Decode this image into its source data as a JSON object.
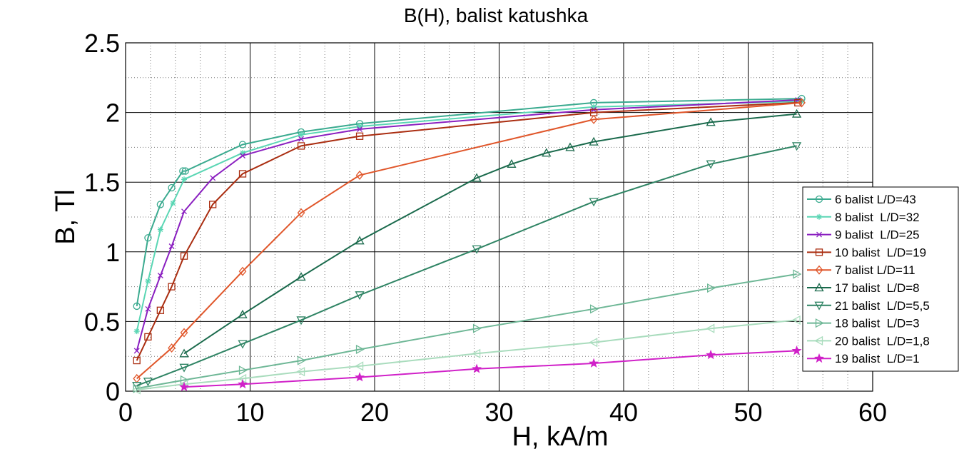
{
  "chart_data": {
    "type": "line",
    "title": "B(H), balist katushka",
    "xlabel": "H, kA/m",
    "ylabel": "B, Tl",
    "xlim": [
      0,
      60
    ],
    "ylim": [
      0,
      2.5
    ],
    "xticks": [
      0,
      10,
      20,
      30,
      40,
      50,
      60
    ],
    "yticks": [
      0,
      0.5,
      1,
      1.5,
      2,
      2.5
    ],
    "yticklabels": [
      "0",
      "0.5",
      "1",
      "1.5",
      "2",
      "2.5"
    ],
    "xticklabels": [
      "0",
      "10",
      "20",
      "30",
      "40",
      "50",
      "60"
    ],
    "grid": true,
    "legend_position": "right",
    "series": [
      {
        "name": "6 balist L/D=43",
        "color": "#3aaa8f",
        "marker": "circle",
        "x": [
          0.9,
          1.8,
          2.8,
          3.7,
          4.6,
          4.8,
          9.4,
          14.1,
          18.8,
          37.6,
          54.3
        ],
        "y": [
          0.61,
          1.1,
          1.34,
          1.46,
          1.58,
          1.58,
          1.77,
          1.86,
          1.92,
          2.07,
          2.1
        ]
      },
      {
        "name": "8 balist  L/D=32",
        "color": "#5ad6b4",
        "marker": "star",
        "x": [
          0.9,
          1.8,
          2.8,
          3.8,
          4.7,
          9.4,
          14.1,
          18.8,
          37.6,
          54.3
        ],
        "y": [
          0.43,
          0.79,
          1.16,
          1.35,
          1.52,
          1.71,
          1.84,
          1.9,
          2.04,
          2.08
        ]
      },
      {
        "name": "9 balist  L/D=25",
        "color": "#8a1fc0",
        "marker": "x",
        "x": [
          0.9,
          1.8,
          2.8,
          3.7,
          4.7,
          7.0,
          9.4,
          14.1,
          18.8,
          37.6,
          54.0
        ],
        "y": [
          0.29,
          0.59,
          0.83,
          1.04,
          1.29,
          1.53,
          1.69,
          1.81,
          1.88,
          2.02,
          2.09
        ]
      },
      {
        "name": "10 balist  L/D=19",
        "color": "#aa2d10",
        "marker": "square",
        "x": [
          0.9,
          1.8,
          2.8,
          3.7,
          4.7,
          7.0,
          9.4,
          14.1,
          18.8,
          37.6,
          54.0
        ],
        "y": [
          0.22,
          0.39,
          0.58,
          0.75,
          0.97,
          1.34,
          1.56,
          1.76,
          1.83,
          2.0,
          2.07
        ]
      },
      {
        "name": "7 balist L/D=11",
        "color": "#e0562a",
        "marker": "diamond",
        "x": [
          0.9,
          3.7,
          4.7,
          9.4,
          14.1,
          18.8,
          37.6,
          54.3
        ],
        "y": [
          0.09,
          0.31,
          0.42,
          0.86,
          1.28,
          1.55,
          1.95,
          2.07
        ]
      },
      {
        "name": "17 balist  L/D=8",
        "color": "#1a6a4c",
        "marker": "triangle-up",
        "x": [
          4.7,
          9.4,
          14.1,
          18.8,
          28.2,
          31.0,
          33.8,
          35.7,
          37.6,
          47.0,
          53.9
        ],
        "y": [
          0.27,
          0.55,
          0.82,
          1.08,
          1.53,
          1.63,
          1.71,
          1.75,
          1.79,
          1.93,
          1.99
        ]
      },
      {
        "name": "21 balist  L/D=5,5",
        "color": "#2f8464",
        "marker": "triangle-down",
        "x": [
          0.9,
          1.8,
          4.7,
          9.4,
          14.1,
          18.8,
          28.2,
          37.6,
          47.0,
          53.9
        ],
        "y": [
          0.04,
          0.07,
          0.17,
          0.34,
          0.51,
          0.69,
          1.02,
          1.36,
          1.63,
          1.76
        ]
      },
      {
        "name": "18 balist  L/D=3",
        "color": "#6eb796",
        "marker": "triangle-right",
        "x": [
          0.9,
          4.7,
          9.4,
          14.1,
          18.8,
          28.2,
          37.6,
          47.0,
          53.9
        ],
        "y": [
          0.02,
          0.08,
          0.15,
          0.22,
          0.3,
          0.45,
          0.59,
          0.74,
          0.84
        ]
      },
      {
        "name": "20 balist  L/D=1,8",
        "color": "#a9dcbd",
        "marker": "triangle-left",
        "x": [
          0.9,
          4.7,
          9.4,
          14.1,
          18.8,
          28.2,
          37.6,
          47.0,
          53.9
        ],
        "y": [
          0.01,
          0.05,
          0.09,
          0.14,
          0.18,
          0.27,
          0.35,
          0.45,
          0.51
        ]
      },
      {
        "name": "19 balist  L/D=1",
        "color": "#d020c8",
        "marker": "pentagram",
        "x": [
          4.7,
          9.4,
          18.8,
          28.2,
          37.6,
          47.0,
          53.9
        ],
        "y": [
          0.03,
          0.05,
          0.1,
          0.16,
          0.2,
          0.26,
          0.29
        ]
      }
    ]
  }
}
